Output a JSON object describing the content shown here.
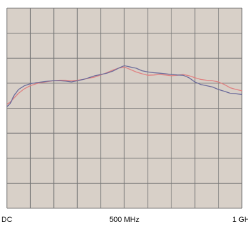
{
  "chart_data": {
    "type": "line",
    "title": "",
    "xlabel": "",
    "ylabel": "",
    "x_tick_labels": [
      {
        "x": 0,
        "label": "DC"
      },
      {
        "x": 500,
        "label": "500 MHz"
      },
      {
        "x": 1000,
        "label": "1 GH"
      }
    ],
    "xlim": [
      0,
      1000
    ],
    "ylim": [
      0,
      8
    ],
    "grid": true,
    "x_divisions": 10,
    "y_divisions": 8,
    "background_color": "#d8d0c8",
    "grid_color": "#777777",
    "series": [
      {
        "color": "#e08080",
        "x": [
          0,
          15,
          30,
          50,
          75,
          100,
          125,
          150,
          175,
          200,
          225,
          250,
          275,
          300,
          325,
          350,
          375,
          400,
          425,
          450,
          475,
          500,
          525,
          550,
          575,
          600,
          625,
          650,
          675,
          700,
          725,
          750,
          775,
          800,
          825,
          850,
          875,
          900,
          925,
          950,
          975,
          1000
        ],
        "y": [
          4.15,
          4.25,
          4.4,
          4.6,
          4.78,
          4.9,
          4.98,
          5.03,
          5.07,
          5.1,
          5.12,
          5.12,
          5.1,
          5.12,
          5.15,
          5.2,
          5.25,
          5.33,
          5.42,
          5.52,
          5.6,
          5.65,
          5.55,
          5.45,
          5.38,
          5.32,
          5.33,
          5.35,
          5.33,
          5.3,
          5.32,
          5.35,
          5.3,
          5.22,
          5.15,
          5.12,
          5.1,
          5.05,
          4.95,
          4.82,
          4.75,
          4.7
        ]
      },
      {
        "color": "#6a6a9a",
        "x": [
          0,
          15,
          30,
          50,
          75,
          100,
          125,
          150,
          175,
          200,
          225,
          250,
          275,
          300,
          325,
          350,
          375,
          400,
          425,
          450,
          475,
          500,
          525,
          550,
          575,
          600,
          625,
          650,
          675,
          700,
          725,
          750,
          775,
          800,
          825,
          850,
          875,
          900,
          925,
          950,
          975,
          1000
        ],
        "y": [
          4.05,
          4.2,
          4.5,
          4.75,
          4.9,
          4.98,
          5.02,
          5.05,
          5.08,
          5.1,
          5.1,
          5.08,
          5.05,
          5.1,
          5.15,
          5.22,
          5.3,
          5.35,
          5.4,
          5.48,
          5.6,
          5.7,
          5.65,
          5.6,
          5.5,
          5.45,
          5.42,
          5.4,
          5.38,
          5.35,
          5.33,
          5.32,
          5.22,
          5.05,
          4.95,
          4.9,
          4.85,
          4.75,
          4.68,
          4.6,
          4.58,
          4.55
        ]
      }
    ]
  }
}
